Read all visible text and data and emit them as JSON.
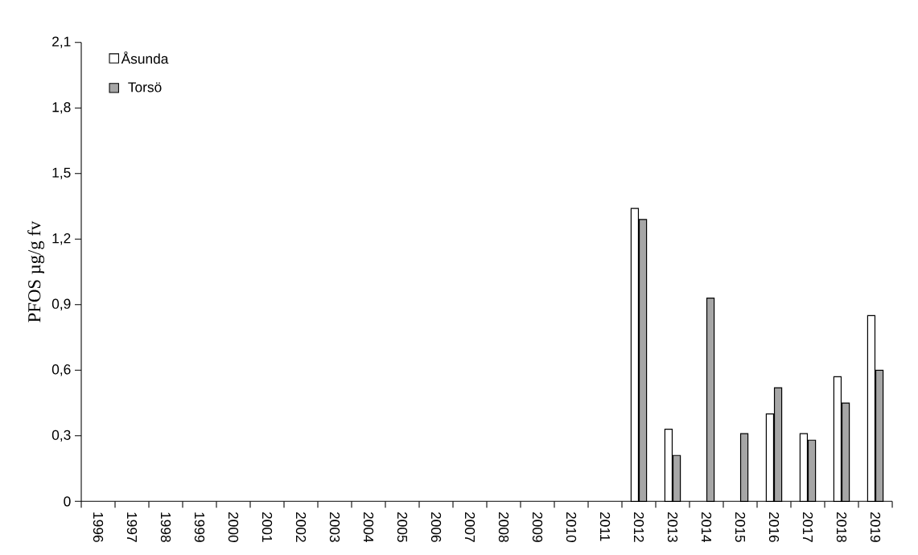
{
  "chart_data": {
    "type": "bar",
    "ylabel": "PFOS µg/g fv",
    "categories": [
      "1996",
      "1997",
      "1998",
      "1999",
      "2000",
      "2001",
      "2002",
      "2003",
      "2004",
      "2005",
      "2006",
      "2007",
      "2008",
      "2009",
      "2010",
      "2011",
      "2012",
      "2013",
      "2014",
      "2015",
      "2016",
      "2017",
      "2018",
      "2019"
    ],
    "series": [
      {
        "name": "Åsunda",
        "color": "#ffffff",
        "values": [
          null,
          null,
          null,
          null,
          null,
          null,
          null,
          null,
          null,
          null,
          null,
          null,
          null,
          null,
          null,
          null,
          1.34,
          0.33,
          null,
          null,
          0.4,
          0.31,
          0.57,
          0.85
        ]
      },
      {
        "name": "Torsö",
        "color": "#a6a6a6",
        "values": [
          null,
          null,
          null,
          null,
          null,
          null,
          null,
          null,
          null,
          null,
          null,
          null,
          null,
          null,
          null,
          null,
          1.29,
          0.21,
          0.93,
          0.31,
          0.52,
          0.28,
          0.45,
          0.6
        ]
      }
    ],
    "ylim": [
      0,
      2.1
    ],
    "yticks": [
      0,
      {
        "value": 0.3,
        "label": "0,3"
      },
      {
        "value": 0.6,
        "label": "0,6"
      },
      {
        "value": 0.9,
        "label": "0,9"
      },
      {
        "value": 1.2,
        "label": "1,2"
      },
      {
        "value": 1.5,
        "label": "1,5"
      },
      {
        "value": 1.8,
        "label": "1,8"
      },
      {
        "value": 2.1,
        "label": "2,1"
      }
    ],
    "legend": "top left",
    "grid": false
  }
}
